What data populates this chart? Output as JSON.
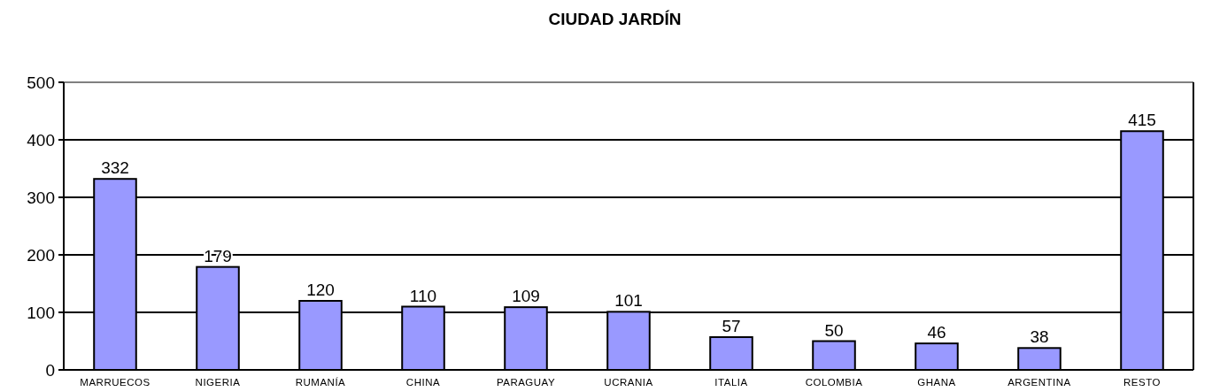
{
  "chart_data": {
    "type": "bar",
    "title": "CIUDAD JARDÍN",
    "categories": [
      "MARRUECOS",
      "NIGERIA",
      "RUMANÍA",
      "CHINA",
      "PARAGUAY",
      "UCRANIA",
      "ITALIA",
      "COLOMBIA",
      "GHANA",
      "ARGENTINA",
      "RESTO"
    ],
    "values": [
      332,
      179,
      120,
      110,
      109,
      101,
      57,
      50,
      46,
      38,
      415
    ],
    "color": "#9999ff",
    "ylim": [
      0,
      500
    ],
    "yticks": [
      0,
      100,
      200,
      300,
      400,
      500
    ],
    "grid": "y",
    "data_labels": true
  }
}
